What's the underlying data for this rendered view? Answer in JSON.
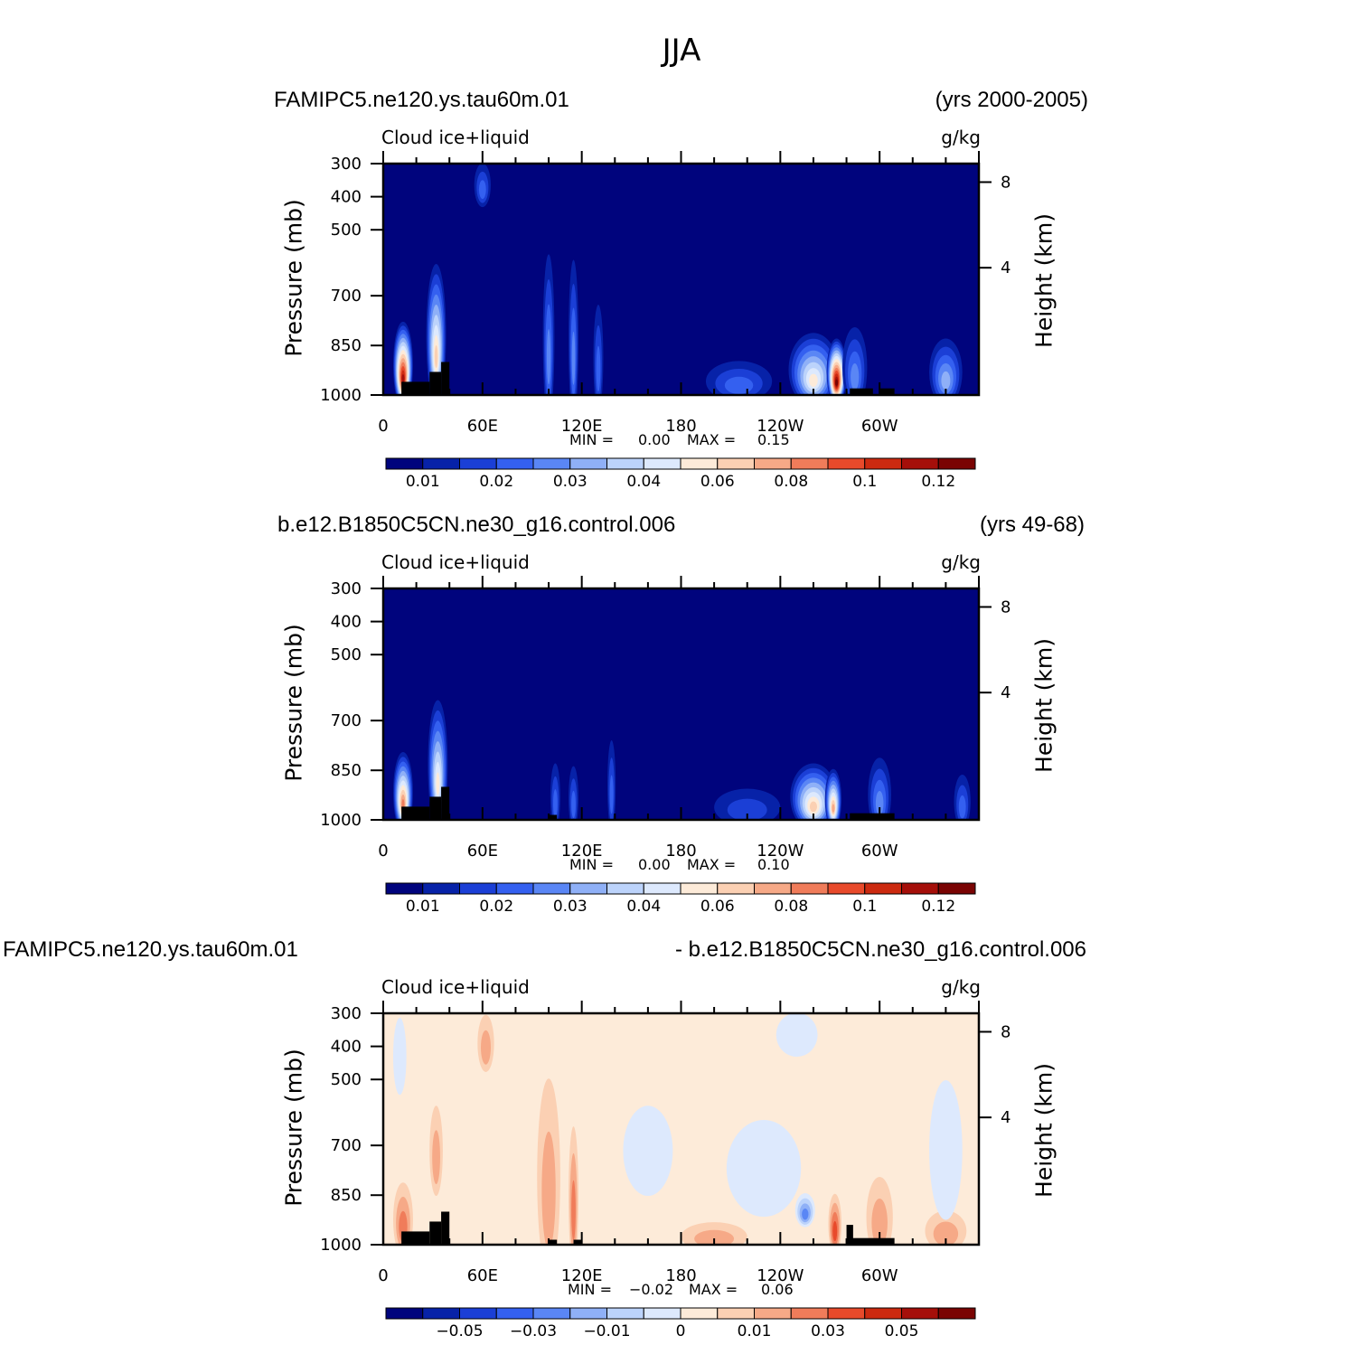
{
  "figure": {
    "title": "JJA"
  },
  "colors": {
    "abs_scale": [
      "#00047d",
      "#0722a8",
      "#1b3fd6",
      "#3460f0",
      "#5a86f5",
      "#8fb0f7",
      "#bcd3fb",
      "#dde9fd",
      "#fdebd9",
      "#fbd0b3",
      "#f6a987",
      "#f07c5a",
      "#e84a2b",
      "#cc2a10",
      "#a50f0a",
      "#7a0403"
    ],
    "diff_scale": [
      "#00047d",
      "#0722a8",
      "#1b3fd6",
      "#3460f0",
      "#5a86f5",
      "#8fb0f7",
      "#bcd3fb",
      "#dde9fd",
      "#fdebd9",
      "#fbd0b3",
      "#f6a987",
      "#f07c5a",
      "#e84a2b",
      "#cc2a10",
      "#a50f0a",
      "#7a0403"
    ],
    "topography": "#000000"
  },
  "chart_data": [
    {
      "type": "heatmap",
      "run_name": "FAMIPC5.ne120.ys.tau60m.01",
      "years": "(yrs 2000-2005)",
      "variable": "Cloud  ice+liquid",
      "units": "g/kg",
      "ylabel": "Pressure  (mb)",
      "ylabel_right": "Height  (km)",
      "x_ticks": [
        "0",
        "60E",
        "120E",
        "180",
        "120W",
        "60W"
      ],
      "y_ticks": [
        "300",
        "400",
        "500",
        "700",
        "850",
        "1000"
      ],
      "y_right_ticks": [
        "8",
        "4"
      ],
      "min_label": "MIN =",
      "min_value": "0.00",
      "max_label": "MAX =",
      "max_value": "0.15",
      "colorbar_labels": [
        "0.01",
        "0.02",
        "0.03",
        "0.04",
        "0.06",
        "0.08",
        "0.1",
        "0.12"
      ],
      "background_level": 0,
      "features": [
        {
          "lon": 12,
          "p_top": 760,
          "p_bot": 990,
          "width": 12,
          "peak": 14
        },
        {
          "lon": 32,
          "p_top": 560,
          "p_bot": 960,
          "width": 12,
          "peak": 9
        },
        {
          "lon": 60,
          "p_top": 300,
          "p_bot": 400,
          "width": 10,
          "peak": 3
        },
        {
          "lon": 100,
          "p_top": 520,
          "p_bot": 990,
          "width": 7,
          "peak": 4
        },
        {
          "lon": 115,
          "p_top": 540,
          "p_bot": 990,
          "width": 6,
          "peak": 4
        },
        {
          "lon": 130,
          "p_top": 700,
          "p_bot": 990,
          "width": 6,
          "peak": 3
        },
        {
          "lon": 215,
          "p_top": 900,
          "p_bot": 990,
          "width": 40,
          "peak": 3
        },
        {
          "lon": 260,
          "p_top": 800,
          "p_bot": 990,
          "width": 30,
          "peak": 8
        },
        {
          "lon": 274,
          "p_top": 820,
          "p_bot": 990,
          "width": 12,
          "peak": 15
        },
        {
          "lon": 285,
          "p_top": 780,
          "p_bot": 990,
          "width": 15,
          "peak": 4
        },
        {
          "lon": 340,
          "p_top": 820,
          "p_bot": 990,
          "width": 20,
          "peak": 5
        }
      ],
      "topography": [
        {
          "lon0": 11,
          "lon1": 28,
          "p_top": 960
        },
        {
          "lon0": 28,
          "lon1": 35,
          "p_top": 930
        },
        {
          "lon0": 35,
          "lon1": 40,
          "p_top": 900
        },
        {
          "lon0": 282,
          "lon1": 296,
          "p_top": 980
        },
        {
          "lon0": 300,
          "lon1": 309,
          "p_top": 980
        }
      ]
    },
    {
      "type": "heatmap",
      "run_name": "b.e12.B1850C5CN.ne30_g16.control.006",
      "years": "(yrs 49-68)",
      "variable": "Cloud  ice+liquid",
      "units": "g/kg",
      "ylabel": "Pressure  (mb)",
      "ylabel_right": "Height  (km)",
      "x_ticks": [
        "0",
        "60E",
        "120E",
        "180",
        "120W",
        "60W"
      ],
      "y_ticks": [
        "300",
        "400",
        "500",
        "700",
        "850",
        "1000"
      ],
      "y_right_ticks": [
        "8",
        "4"
      ],
      "min_label": "MIN =",
      "min_value": "0.00",
      "max_label": "MAX =",
      "max_value": "0.10",
      "colorbar_labels": [
        "0.01",
        "0.02",
        "0.03",
        "0.04",
        "0.06",
        "0.08",
        "0.1",
        "0.12"
      ],
      "background_level": 0,
      "features": [
        {
          "lon": 12,
          "p_top": 780,
          "p_bot": 990,
          "width": 12,
          "peak": 11
        },
        {
          "lon": 33,
          "p_top": 600,
          "p_bot": 960,
          "width": 12,
          "peak": 8
        },
        {
          "lon": 104,
          "p_top": 820,
          "p_bot": 990,
          "width": 6,
          "peak": 3
        },
        {
          "lon": 115,
          "p_top": 830,
          "p_bot": 990,
          "width": 6,
          "peak": 3
        },
        {
          "lon": 138,
          "p_top": 740,
          "p_bot": 980,
          "width": 5,
          "peak": 3
        },
        {
          "lon": 220,
          "p_top": 910,
          "p_bot": 990,
          "width": 40,
          "peak": 2
        },
        {
          "lon": 260,
          "p_top": 820,
          "p_bot": 990,
          "width": 28,
          "peak": 9
        },
        {
          "lon": 272,
          "p_top": 840,
          "p_bot": 990,
          "width": 10,
          "peak": 10
        },
        {
          "lon": 300,
          "p_top": 800,
          "p_bot": 990,
          "width": 14,
          "peak": 4
        },
        {
          "lon": 350,
          "p_top": 860,
          "p_bot": 990,
          "width": 10,
          "peak": 3
        }
      ],
      "topography": [
        {
          "lon0": 11,
          "lon1": 28,
          "p_top": 960
        },
        {
          "lon0": 28,
          "lon1": 35,
          "p_top": 930
        },
        {
          "lon0": 35,
          "lon1": 40,
          "p_top": 900
        },
        {
          "lon0": 100,
          "lon1": 105,
          "p_top": 985
        },
        {
          "lon0": 282,
          "lon1": 309,
          "p_top": 980
        }
      ]
    },
    {
      "type": "heatmap",
      "run_name": "FAMIPC5.ne120.ys.tau60m.01",
      "years": "- b.e12.B1850C5CN.ne30_g16.control.006",
      "variable": "Cloud  ice+liquid",
      "units": "g/kg",
      "ylabel": "Pressure  (mb)",
      "ylabel_right": "Height  (km)",
      "x_ticks": [
        "0",
        "60E",
        "120E",
        "180",
        "120W",
        "60W"
      ],
      "y_ticks": [
        "300",
        "400",
        "500",
        "700",
        "850",
        "1000"
      ],
      "y_right_ticks": [
        "8",
        "4"
      ],
      "min_label": "MIN =",
      "min_value": "−0.02",
      "max_label": "MAX =",
      "max_value": "0.06",
      "colorbar_labels": [
        "−0.05",
        "−0.03",
        "−0.01",
        "0",
        "0.01",
        "0.03",
        "0.05"
      ],
      "background_level": 8,
      "features": [
        {
          "lon": 62,
          "p_top": 300,
          "p_bot": 440,
          "width": 10,
          "peak": 10
        },
        {
          "lon": 100,
          "p_top": 430,
          "p_bot": 990,
          "width": 14,
          "peak": 10
        },
        {
          "lon": 12,
          "p_top": 800,
          "p_bot": 990,
          "width": 12,
          "peak": 11
        },
        {
          "lon": 32,
          "p_top": 560,
          "p_bot": 800,
          "width": 8,
          "peak": 10
        },
        {
          "lon": 115,
          "p_top": 600,
          "p_bot": 990,
          "width": 6,
          "peak": 11
        },
        {
          "lon": 200,
          "p_top": 940,
          "p_bot": 995,
          "width": 40,
          "peak": 10
        },
        {
          "lon": 273,
          "p_top": 840,
          "p_bot": 990,
          "width": 8,
          "peak": 12
        },
        {
          "lon": 300,
          "p_top": 780,
          "p_bot": 990,
          "width": 16,
          "peak": 10
        },
        {
          "lon": 340,
          "p_top": 900,
          "p_bot": 990,
          "width": 25,
          "peak": 10
        },
        {
          "lon": 10,
          "p_top": 300,
          "p_bot": 500,
          "width": 8,
          "peak": 7
        },
        {
          "lon": 230,
          "p_top": 600,
          "p_bot": 860,
          "width": 45,
          "peak": 7
        },
        {
          "lon": 160,
          "p_top": 560,
          "p_bot": 800,
          "width": 30,
          "peak": 7
        },
        {
          "lon": 255,
          "p_top": 850,
          "p_bot": 920,
          "width": 12,
          "peak": 4
        },
        {
          "lon": 340,
          "p_top": 460,
          "p_bot": 850,
          "width": 20,
          "peak": 7
        },
        {
          "lon": 250,
          "p_top": 300,
          "p_bot": 400,
          "width": 25,
          "peak": 7
        }
      ],
      "topography": [
        {
          "lon0": 11,
          "lon1": 28,
          "p_top": 960
        },
        {
          "lon0": 28,
          "lon1": 35,
          "p_top": 930
        },
        {
          "lon0": 35,
          "lon1": 40,
          "p_top": 900
        },
        {
          "lon0": 100,
          "lon1": 105,
          "p_top": 985
        },
        {
          "lon0": 115,
          "lon1": 120,
          "p_top": 985
        },
        {
          "lon0": 280,
          "lon1": 309,
          "p_top": 980
        },
        {
          "lon0": 280,
          "lon1": 284,
          "p_top": 940
        }
      ]
    }
  ]
}
